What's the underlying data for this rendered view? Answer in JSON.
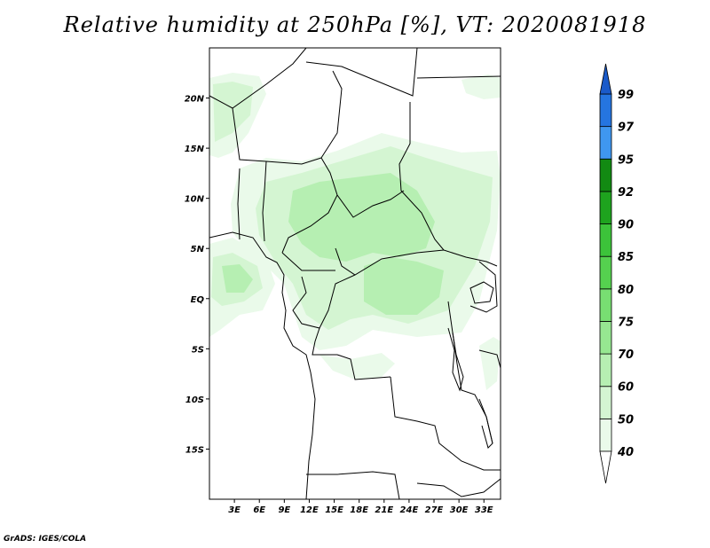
{
  "title": "Relative humidity at 250hPa [%], VT: 2020081918",
  "footer": "GrADS: IGES/COLA",
  "map": {
    "lon_range": [
      0,
      35
    ],
    "lat_range": [
      -20,
      25
    ],
    "lat_ticks": [
      {
        "value": 20,
        "label": "20N"
      },
      {
        "value": 15,
        "label": "15N"
      },
      {
        "value": 10,
        "label": "10N"
      },
      {
        "value": 5,
        "label": "5N"
      },
      {
        "value": 0,
        "label": "EQ"
      },
      {
        "value": -5,
        "label": "5S"
      },
      {
        "value": -10,
        "label": "10S"
      },
      {
        "value": -15,
        "label": "15S"
      }
    ],
    "lon_ticks": [
      {
        "value": 3,
        "label": "3E"
      },
      {
        "value": 6,
        "label": "6E"
      },
      {
        "value": 9,
        "label": "9E"
      },
      {
        "value": 12,
        "label": "12E"
      },
      {
        "value": 15,
        "label": "15E"
      },
      {
        "value": 18,
        "label": "18E"
      },
      {
        "value": 21,
        "label": "21E"
      },
      {
        "value": 24,
        "label": "24E"
      },
      {
        "value": 27,
        "label": "27E"
      },
      {
        "value": 30,
        "label": "30E"
      },
      {
        "value": 33,
        "label": "33E"
      }
    ]
  },
  "colorbar": {
    "levels": [
      "40",
      "50",
      "60",
      "70",
      "75",
      "80",
      "85",
      "90",
      "92",
      "95",
      "97",
      "99"
    ],
    "colors": [
      "#eafaea",
      "#d4f5d2",
      "#b6efb2",
      "#96e791",
      "#78de72",
      "#55d14f",
      "#3cc33a",
      "#1ea31e",
      "#128a12",
      "#3f97f0",
      "#2575e0",
      "#1a5ac9"
    ]
  }
}
